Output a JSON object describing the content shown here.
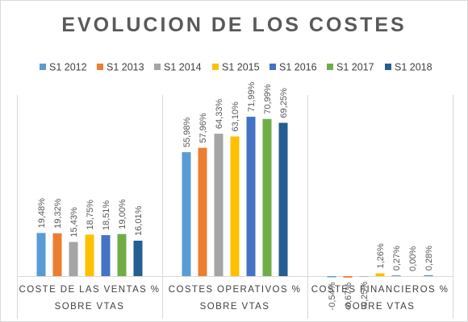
{
  "chart_data": {
    "type": "bar",
    "title": "EVOLUCION DE LOS COSTES",
    "categories": [
      "COSTE DE LAS VENTAS % SOBRE VTAS",
      "COSTES OPERATIVOS % SOBRE VTAS",
      "COSTES FINANCIEROS % SOBRE VTAS"
    ],
    "series": [
      {
        "name": "S1 2012",
        "color": "#5B9BD5",
        "values": [
          19.48,
          55.98,
          -0.54
        ],
        "labels": [
          "19,48%",
          "55,98%",
          "-0,54%"
        ]
      },
      {
        "name": "S1 2013",
        "color": "#ED7D31",
        "values": [
          19.32,
          57.96,
          -0.67
        ],
        "labels": [
          "19,32%",
          "57,96%",
          "-0,67%"
        ]
      },
      {
        "name": "S1 2014",
        "color": "#A5A5A5",
        "values": [
          15.43,
          64.33,
          -0.25
        ],
        "labels": [
          "15,43%",
          "64,33%",
          "-0,25%"
        ]
      },
      {
        "name": "S1 2015",
        "color": "#FFC000",
        "values": [
          18.75,
          63.1,
          1.26
        ],
        "labels": [
          "18,75%",
          "63,10%",
          "1,26%"
        ]
      },
      {
        "name": "S1 2016",
        "color": "#4472C4",
        "values": [
          18.51,
          71.99,
          0.27
        ],
        "labels": [
          "18,51%",
          "71,99%",
          "0,27%"
        ]
      },
      {
        "name": "S1 2017",
        "color": "#70AD47",
        "values": [
          19.0,
          70.99,
          0.0
        ],
        "labels": [
          "19,00%",
          "70,99%",
          "0,00%"
        ]
      },
      {
        "name": "S1 2018",
        "color": "#255E91",
        "values": [
          16.01,
          69.25,
          0.28
        ],
        "labels": [
          "16,01%",
          "69,25%",
          "0,28%"
        ]
      }
    ],
    "ylim": [
      0,
      80
    ],
    "grid": false,
    "legend": "top"
  }
}
